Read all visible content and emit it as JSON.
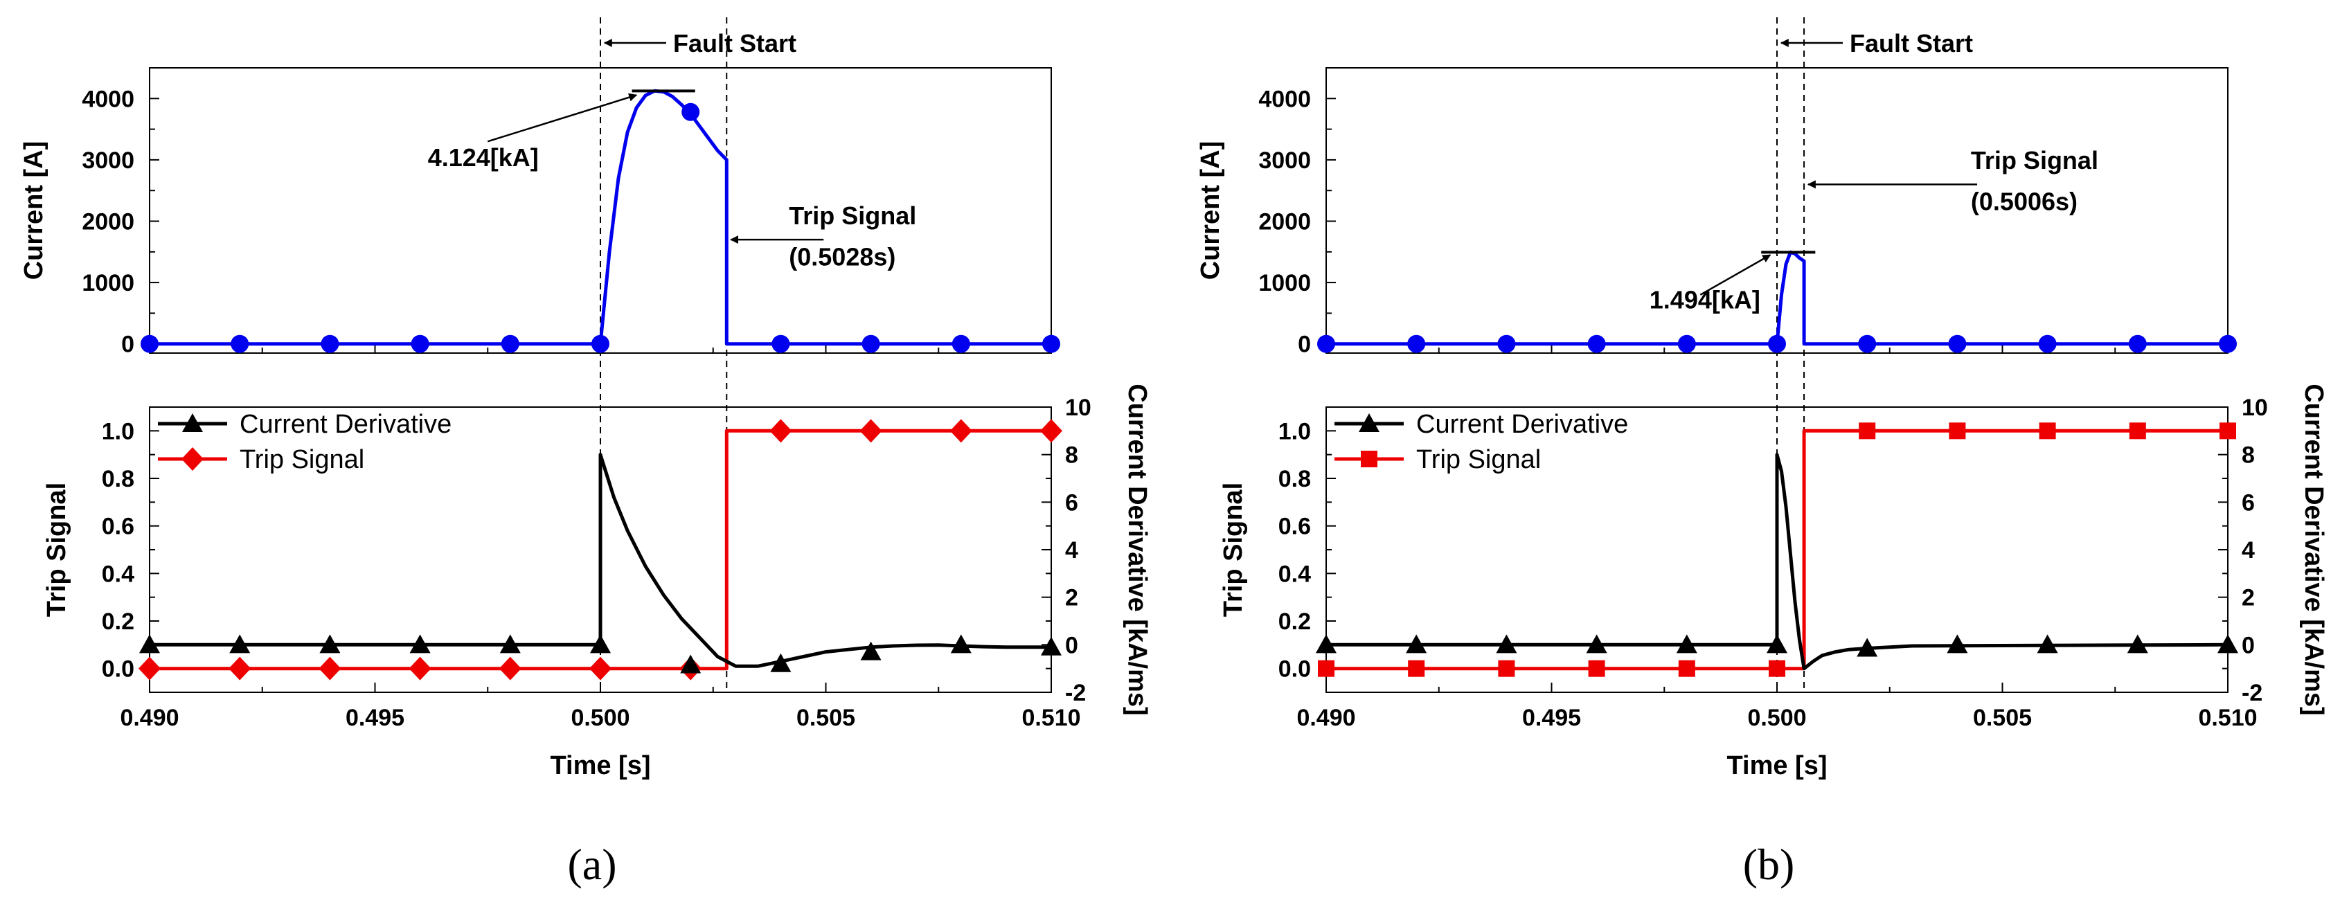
{
  "chart_data": [
    {
      "type": "line",
      "panel_label": "(a)",
      "x_axis": {
        "label": "Time [s]",
        "lim": [
          0.49,
          0.51
        ],
        "ticks": [
          "0.490",
          "0.495",
          "0.500",
          "0.505",
          "0.510"
        ]
      },
      "current_plot": {
        "ylabel": "Current [A]",
        "ylim": [
          -150,
          4500
        ],
        "yticks": [
          "0",
          "1000",
          "2000",
          "3000",
          "4000"
        ],
        "series": [
          {
            "name": "Current",
            "color": "#0000ee",
            "marker": "circle",
            "x": [
              0.49,
              0.5,
              0.5002,
              0.5004,
              0.5006,
              0.5008,
              0.501,
              0.5012,
              0.5014,
              0.5016,
              0.5018,
              0.502,
              0.5022,
              0.5024,
              0.5026,
              0.5028,
              0.5028,
              0.51
            ],
            "y": [
              0,
              0,
              1500,
              2700,
              3450,
              3850,
              4050,
              4124,
              4110,
              4030,
              3900,
              3750,
              3550,
              3350,
              3150,
              3000,
              0,
              0
            ],
            "marker_x": [
              0.49,
              0.492,
              0.494,
              0.496,
              0.498,
              0.5,
              0.502,
              0.504,
              0.506,
              0.508,
              0.51
            ],
            "marker_y": [
              0,
              0,
              0,
              0,
              0,
              0,
              3780,
              0,
              0,
              0,
              0
            ]
          }
        ],
        "annotations": {
          "peak": "4.124[kA]",
          "peak_value": 4124,
          "fault": "Fault Start",
          "fault_time": 0.5,
          "trip_title": "Trip Signal",
          "trip_time_label": "(0.5028s)",
          "trip_time": 0.5028
        }
      },
      "trip_plot": {
        "ylabel_left": "Trip Signal",
        "ylabel_right": "Current Derivative [kA/ms]",
        "ylim_left": [
          -0.1,
          1.1
        ],
        "yticks_left": [
          "0.0",
          "0.2",
          "0.4",
          "0.6",
          "0.8",
          "1.0"
        ],
        "ylim_right": [
          -2,
          10
        ],
        "yticks_right": [
          "-2",
          "0",
          "2",
          "4",
          "6",
          "8",
          "10"
        ],
        "legend": [
          "Current Derivative",
          "Trip Signal"
        ],
        "series": [
          {
            "name": "Current Derivative",
            "axis": "right",
            "color": "#000000",
            "marker": "triangle",
            "x": [
              0.49,
              0.5,
              0.5,
              0.5003,
              0.5006,
              0.501,
              0.5014,
              0.5018,
              0.5022,
              0.5026,
              0.503,
              0.5035,
              0.504,
              0.5045,
              0.505,
              0.5055,
              0.506,
              0.5065,
              0.507,
              0.5075,
              0.508,
              0.5085,
              0.509,
              0.51
            ],
            "y": [
              0,
              0,
              8,
              6.2,
              4.8,
              3.3,
              2.1,
              1.1,
              0.3,
              -0.5,
              -0.9,
              -0.9,
              -0.7,
              -0.5,
              -0.3,
              -0.2,
              -0.1,
              -0.05,
              -0.02,
              -0.01,
              -0.05,
              -0.08,
              -0.1,
              -0.1
            ],
            "marker_x": [
              0.49,
              0.492,
              0.494,
              0.496,
              0.498,
              0.5,
              0.502,
              0.504,
              0.506,
              0.508,
              0.51
            ],
            "marker_y": [
              0,
              0,
              0,
              0,
              0,
              0,
              -0.85,
              -0.8,
              -0.3,
              0,
              -0.1
            ]
          },
          {
            "name": "Trip Signal",
            "axis": "left",
            "color": "#ee0000",
            "marker": "diamond",
            "x": [
              0.49,
              0.5028,
              0.5028,
              0.51
            ],
            "y": [
              0,
              0,
              1,
              1
            ],
            "marker_x": [
              0.49,
              0.492,
              0.494,
              0.496,
              0.498,
              0.5,
              0.502,
              0.504,
              0.506,
              0.508,
              0.51
            ],
            "marker_y": [
              0,
              0,
              0,
              0,
              0,
              0,
              0,
              1,
              1,
              1,
              1
            ]
          }
        ]
      }
    },
    {
      "type": "line",
      "panel_label": "(b)",
      "x_axis": {
        "label": "Time [s]",
        "lim": [
          0.49,
          0.51
        ],
        "ticks": [
          "0.490",
          "0.495",
          "0.500",
          "0.505",
          "0.510"
        ]
      },
      "current_plot": {
        "ylabel": "Current [A]",
        "ylim": [
          -150,
          4500
        ],
        "yticks": [
          "0",
          "1000",
          "2000",
          "3000",
          "4000"
        ],
        "series": [
          {
            "name": "Current",
            "color": "#0000ee",
            "marker": "circle",
            "x": [
              0.49,
              0.5,
              0.5001,
              0.5002,
              0.5003,
              0.5004,
              0.5005,
              0.5006,
              0.5006,
              0.51
            ],
            "y": [
              0,
              0,
              800,
              1300,
              1494,
              1470,
              1400,
              1350,
              0,
              0
            ],
            "marker_x": [
              0.49,
              0.492,
              0.494,
              0.496,
              0.498,
              0.5,
              0.502,
              0.504,
              0.506,
              0.508,
              0.51
            ],
            "marker_y": [
              0,
              0,
              0,
              0,
              0,
              0,
              0,
              0,
              0,
              0,
              0
            ]
          }
        ],
        "annotations": {
          "peak": "1.494[kA]",
          "peak_value": 1494,
          "fault": "Fault Start",
          "fault_time": 0.5,
          "trip_title": "Trip Signal",
          "trip_time_label": "(0.5006s)",
          "trip_time": 0.5006
        }
      },
      "trip_plot": {
        "ylabel_left": "Trip Signal",
        "ylabel_right": "Current Derivative [kA/ms]",
        "ylim_left": [
          -0.1,
          1.1
        ],
        "yticks_left": [
          "0.0",
          "0.2",
          "0.4",
          "0.6",
          "0.8",
          "1.0"
        ],
        "ylim_right": [
          -2,
          10
        ],
        "yticks_right": [
          "-2",
          "0",
          "2",
          "4",
          "6",
          "8",
          "10"
        ],
        "legend": [
          "Current Derivative",
          "Trip Signal"
        ],
        "series": [
          {
            "name": "Current Derivative",
            "axis": "right",
            "color": "#000000",
            "marker": "triangle",
            "x": [
              0.49,
              0.5,
              0.5,
              0.5001,
              0.5002,
              0.5003,
              0.5004,
              0.5005,
              0.5006,
              0.5008,
              0.501,
              0.5013,
              0.5016,
              0.502,
              0.5025,
              0.503,
              0.51
            ],
            "y": [
              0,
              0,
              8,
              7.3,
              5.8,
              3.8,
              1.8,
              0.2,
              -1.0,
              -0.7,
              -0.45,
              -0.3,
              -0.2,
              -0.15,
              -0.1,
              -0.05,
              0
            ],
            "marker_x": [
              0.49,
              0.492,
              0.494,
              0.496,
              0.498,
              0.5,
              0.502,
              0.504,
              0.506,
              0.508,
              0.51
            ],
            "marker_y": [
              0,
              0,
              0,
              0,
              0,
              0,
              -0.15,
              0,
              0,
              0,
              0
            ]
          },
          {
            "name": "Trip Signal",
            "axis": "left",
            "color": "#ee0000",
            "marker": "square",
            "x": [
              0.49,
              0.5006,
              0.5006,
              0.51
            ],
            "y": [
              0,
              0,
              1,
              1
            ],
            "marker_x": [
              0.49,
              0.492,
              0.494,
              0.496,
              0.498,
              0.5,
              0.502,
              0.504,
              0.506,
              0.508,
              0.51
            ],
            "marker_y": [
              0,
              0,
              0,
              0,
              0,
              0,
              1,
              1,
              1,
              1,
              1
            ]
          }
        ]
      }
    }
  ]
}
